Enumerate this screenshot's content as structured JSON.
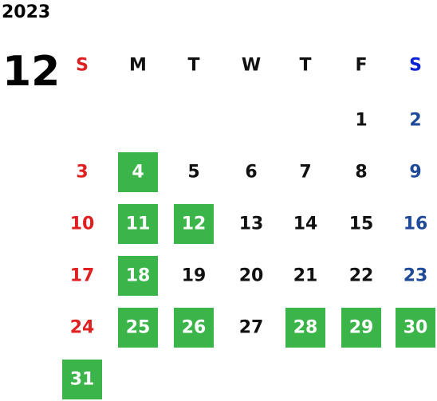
{
  "year": "2023",
  "month": "12",
  "weekdays": [
    "S",
    "M",
    "T",
    "W",
    "T",
    "F",
    "S"
  ],
  "weeks": [
    [
      null,
      null,
      null,
      null,
      null,
      {
        "day": "1",
        "highlight": false
      },
      {
        "day": "2",
        "highlight": false
      }
    ],
    [
      {
        "day": "3",
        "highlight": false
      },
      {
        "day": "4",
        "highlight": true
      },
      {
        "day": "5",
        "highlight": false
      },
      {
        "day": "6",
        "highlight": false
      },
      {
        "day": "7",
        "highlight": false
      },
      {
        "day": "8",
        "highlight": false
      },
      {
        "day": "9",
        "highlight": false
      }
    ],
    [
      {
        "day": "10",
        "highlight": false
      },
      {
        "day": "11",
        "highlight": true
      },
      {
        "day": "12",
        "highlight": true
      },
      {
        "day": "13",
        "highlight": false
      },
      {
        "day": "14",
        "highlight": false
      },
      {
        "day": "15",
        "highlight": false
      },
      {
        "day": "16",
        "highlight": false
      }
    ],
    [
      {
        "day": "17",
        "highlight": false
      },
      {
        "day": "18",
        "highlight": true
      },
      {
        "day": "19",
        "highlight": false
      },
      {
        "day": "20",
        "highlight": false
      },
      {
        "day": "21",
        "highlight": false
      },
      {
        "day": "22",
        "highlight": false
      },
      {
        "day": "23",
        "highlight": false
      }
    ],
    [
      {
        "day": "24",
        "highlight": false
      },
      {
        "day": "25",
        "highlight": true
      },
      {
        "day": "26",
        "highlight": true
      },
      {
        "day": "27",
        "highlight": false
      },
      {
        "day": "28",
        "highlight": true
      },
      {
        "day": "29",
        "highlight": true
      },
      {
        "day": "30",
        "highlight": true
      }
    ],
    [
      {
        "day": "31",
        "highlight": true
      },
      null,
      null,
      null,
      null,
      null,
      null
    ]
  ]
}
